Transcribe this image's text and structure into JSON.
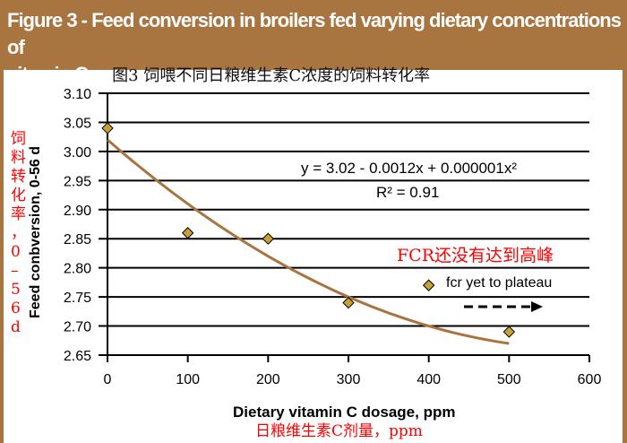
{
  "header": {
    "title_en": "Figure 3 - Feed conversion in broilers fed varying dietary concentrations of",
    "title_en2": "vitamin C.",
    "title_zh": "图3  饲喂不同日粮维生素C浓度的饲料转化率"
  },
  "chart_data": {
    "type": "scatter",
    "title": "Figure 3 - Feed conversion in broilers fed varying dietary concentrations of vitamin C.",
    "xlabel": "Dietary vitamin C dosage, ppm",
    "xlabel_zh": "日粮维生素C剂量，ppm",
    "ylabel": "Feed conbversion, 0-56 d",
    "ylabel_zh": "饲料转化率，0–56d",
    "xlim": [
      0,
      600
    ],
    "ylim": [
      2.65,
      3.1
    ],
    "xticks": [
      "0",
      "100",
      "200",
      "300",
      "400",
      "500",
      "600"
    ],
    "yticks": [
      "2.65",
      "2.70",
      "2.75",
      "2.80",
      "2.85",
      "2.90",
      "2.95",
      "3.00",
      "3.05",
      "3.10"
    ],
    "grid": "horizontal",
    "x": [
      0,
      100,
      200,
      300,
      400,
      500
    ],
    "y": [
      3.04,
      2.86,
      2.85,
      2.74,
      2.77,
      2.69
    ],
    "trendline": {
      "equation": "y = 3.02 - 0.0012x + 0.000001x²",
      "r2": "R² = 0.91",
      "coefficients": [
        3.02,
        -0.0012,
        1e-06
      ],
      "x_range": [
        0,
        500
      ]
    },
    "annotations": {
      "zh": "FCR还没有达到高峰",
      "en": "fcr yet to plateau"
    },
    "colors": {
      "marker": "#c9a033",
      "trendline": "#a8743f",
      "zh_text": "#ff0000"
    }
  }
}
